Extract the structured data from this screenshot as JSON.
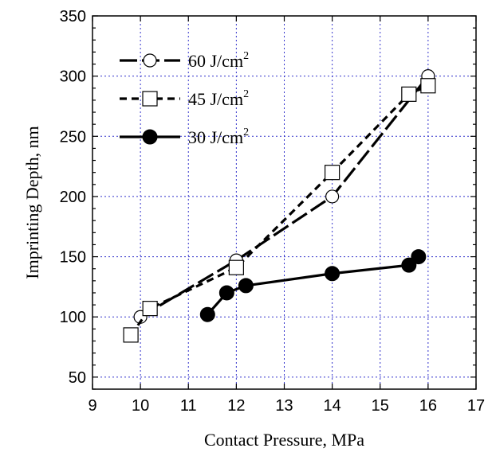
{
  "chart_data": {
    "type": "line",
    "title": "",
    "xlabel": "Contact Pressure, MPa",
    "ylabel": "Imprinting Depth, nm",
    "xlim": [
      9,
      17
    ],
    "ylim": [
      40,
      350
    ],
    "xticks": [
      9,
      10,
      11,
      12,
      13,
      14,
      15,
      16,
      17
    ],
    "yticks": [
      50,
      100,
      150,
      200,
      250,
      300,
      350
    ],
    "grid": true,
    "legend_position": "top-left",
    "series": [
      {
        "name": "60 J/cm",
        "sup": "2",
        "marker": "open-circle",
        "line": "long-dash",
        "color": "#000000",
        "points": [
          [
            10,
            100
          ],
          [
            12,
            147
          ],
          [
            14,
            200
          ],
          [
            16,
            300
          ]
        ]
      },
      {
        "name": "45 J/cm",
        "sup": "2",
        "marker": "open-square",
        "line": "dash",
        "color": "#000000",
        "points": [
          [
            9.8,
            85
          ],
          [
            10.2,
            107
          ],
          [
            12,
            141
          ],
          [
            14,
            220
          ],
          [
            15.6,
            285
          ],
          [
            16,
            292
          ]
        ]
      },
      {
        "name": "30 J/cm",
        "sup": "2",
        "marker": "filled-circle",
        "line": "solid",
        "color": "#000000",
        "points": [
          [
            11.4,
            102
          ],
          [
            11.8,
            120
          ],
          [
            12.2,
            126
          ],
          [
            14,
            136
          ],
          [
            15.6,
            143
          ],
          [
            15.8,
            150
          ]
        ]
      }
    ]
  },
  "colors": {
    "grid": "#3333cc",
    "axis": "#000000",
    "background": "#ffffff"
  }
}
